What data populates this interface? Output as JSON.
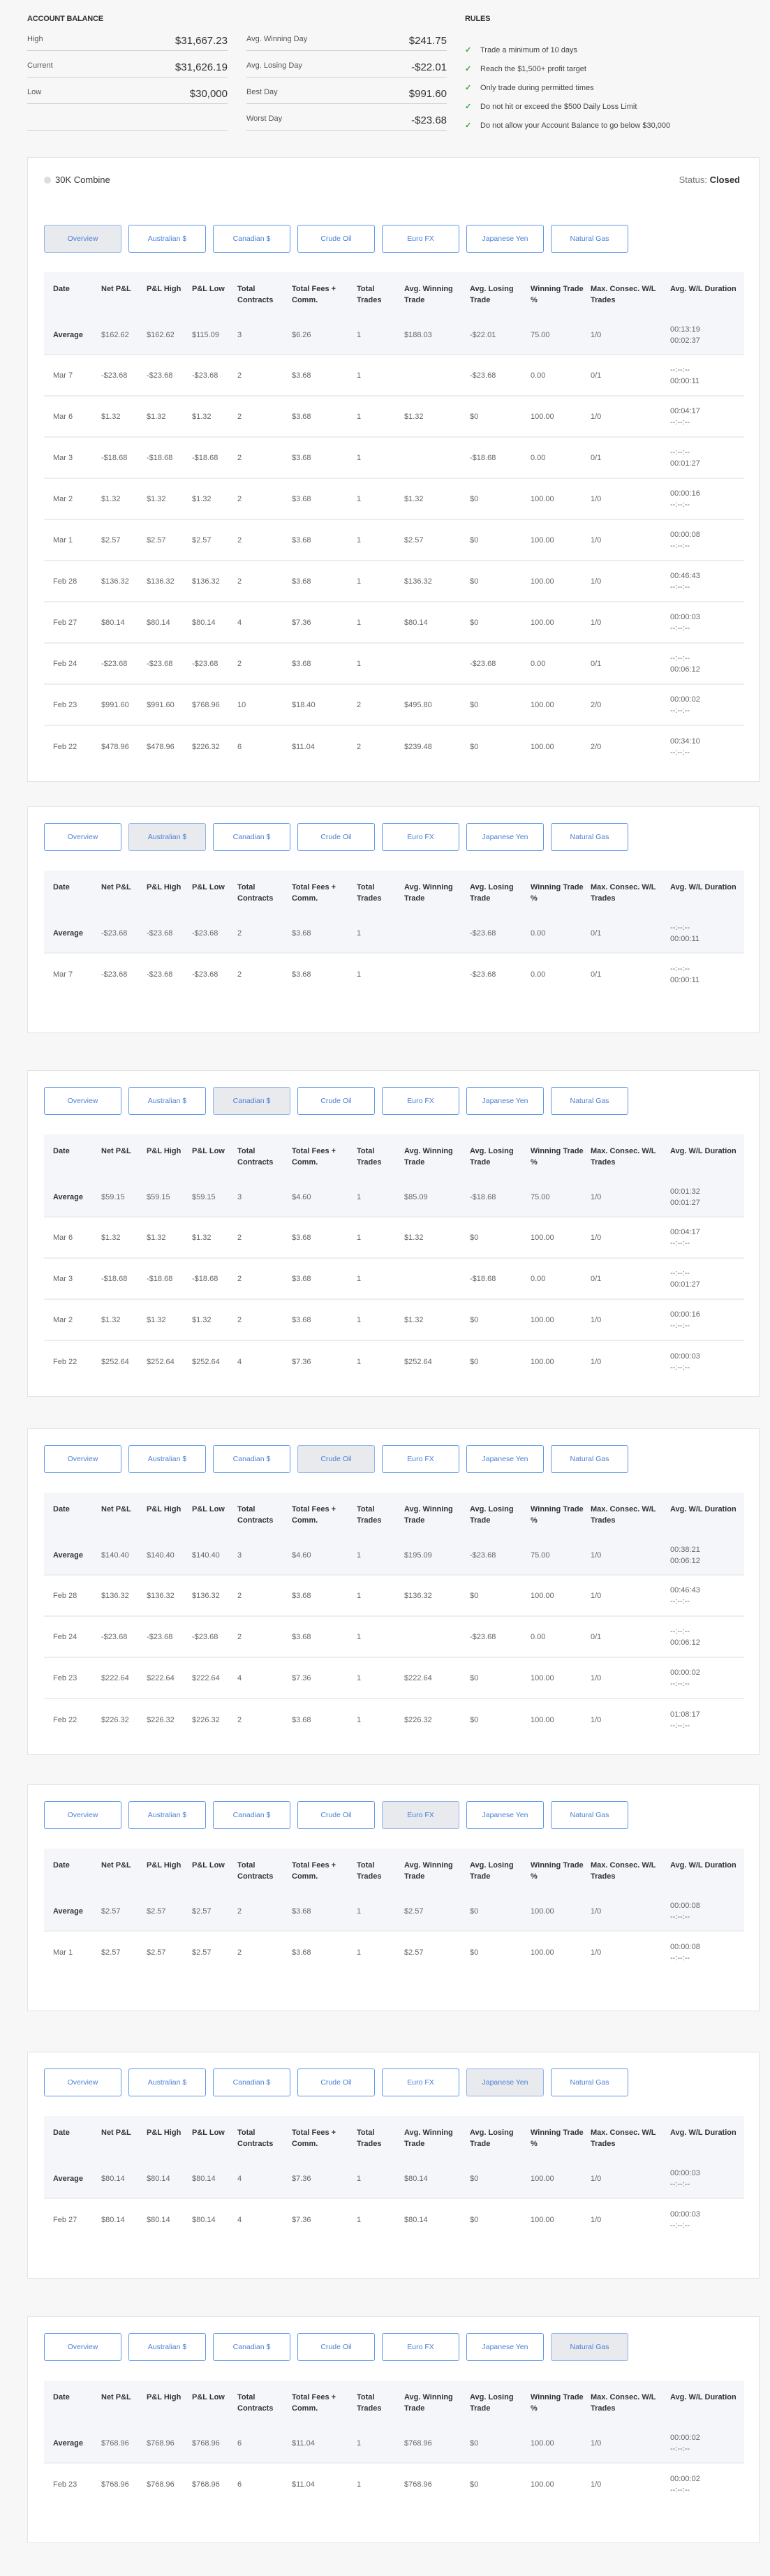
{
  "account_balance": {
    "title": "ACCOUNT BALANCE",
    "left": [
      {
        "label": "High",
        "value": "$31,667.23"
      },
      {
        "label": "Current",
        "value": "$31,626.19"
      },
      {
        "label": "Low",
        "value": "$30,000"
      },
      {
        "label": "",
        "value": ""
      }
    ],
    "right": [
      {
        "label": "Avg. Winning Day",
        "value": "$241.75"
      },
      {
        "label": "Avg. Losing Day",
        "value": "-$22.01"
      },
      {
        "label": "Best Day",
        "value": "$991.60"
      },
      {
        "label": "Worst Day",
        "value": "-$23.68"
      }
    ]
  },
  "rules": {
    "title": "RULES",
    "check_icon": "✓",
    "check_color": "#2ea84a",
    "items": [
      "Trade a minimum of 10 days",
      "Reach the $1,500+ profit target",
      "Only trade during permitted times",
      "Do not hit or exceed the $500 Daily Loss Limit",
      "Do not allow your Account Balance to go below $30,000"
    ]
  },
  "combine": {
    "name": "30K Combine",
    "status_label": "Status:",
    "status_value": "Closed"
  },
  "tabs": [
    "Overview",
    "Australian $",
    "Canadian $",
    "Crude Oil",
    "Euro FX",
    "Japanese Yen",
    "Natural Gas"
  ],
  "columns": [
    "Date",
    "Net P&L",
    "P&L High",
    "P&L Low",
    "Total Contracts",
    "Total Fees + Comm.",
    "Total Trades",
    "Avg. Winning Trade",
    "Avg. Losing Trade",
    "Winning Trade %",
    "Max. Consec. W/L Trades",
    "Avg. W/L Duration"
  ],
  "tables": [
    {
      "active_tab": "Overview",
      "rows": [
        {
          "date": "Average",
          "cells": [
            "$162.62",
            "$162.62",
            "$115.09",
            "3",
            "$6.26",
            "1",
            "$188.03",
            "-$22.01",
            "75.00",
            "1/0"
          ],
          "duration": [
            "00:13:19",
            "00:02:37"
          ]
        },
        {
          "date": "Mar 7",
          "cells": [
            "-$23.68",
            "-$23.68",
            "-$23.68",
            "2",
            "$3.68",
            "1",
            "",
            "-$23.68",
            "0.00",
            "0/1"
          ],
          "duration": [
            "--:--:--",
            "00:00:11"
          ]
        },
        {
          "date": "Mar 6",
          "cells": [
            "$1.32",
            "$1.32",
            "$1.32",
            "2",
            "$3.68",
            "1",
            "$1.32",
            "$0",
            "100.00",
            "1/0"
          ],
          "duration": [
            "00:04:17",
            "--:--:--"
          ]
        },
        {
          "date": "Mar 3",
          "cells": [
            "-$18.68",
            "-$18.68",
            "-$18.68",
            "2",
            "$3.68",
            "1",
            "",
            "-$18.68",
            "0.00",
            "0/1"
          ],
          "duration": [
            "--:--:--",
            "00:01:27"
          ]
        },
        {
          "date": "Mar 2",
          "cells": [
            "$1.32",
            "$1.32",
            "$1.32",
            "2",
            "$3.68",
            "1",
            "$1.32",
            "$0",
            "100.00",
            "1/0"
          ],
          "duration": [
            "00:00:16",
            "--:--:--"
          ]
        },
        {
          "date": "Mar 1",
          "cells": [
            "$2.57",
            "$2.57",
            "$2.57",
            "2",
            "$3.68",
            "1",
            "$2.57",
            "$0",
            "100.00",
            "1/0"
          ],
          "duration": [
            "00:00:08",
            "--:--:--"
          ]
        },
        {
          "date": "Feb 28",
          "cells": [
            "$136.32",
            "$136.32",
            "$136.32",
            "2",
            "$3.68",
            "1",
            "$136.32",
            "$0",
            "100.00",
            "1/0"
          ],
          "duration": [
            "00:46:43",
            "--:--:--"
          ]
        },
        {
          "date": "Feb 27",
          "cells": [
            "$80.14",
            "$80.14",
            "$80.14",
            "4",
            "$7.36",
            "1",
            "$80.14",
            "$0",
            "100.00",
            "1/0"
          ],
          "duration": [
            "00:00:03",
            "--:--:--"
          ]
        },
        {
          "date": "Feb 24",
          "cells": [
            "-$23.68",
            "-$23.68",
            "-$23.68",
            "2",
            "$3.68",
            "1",
            "",
            "-$23.68",
            "0.00",
            "0/1"
          ],
          "duration": [
            "--:--:--",
            "00:06:12"
          ]
        },
        {
          "date": "Feb 23",
          "cells": [
            "$991.60",
            "$991.60",
            "$768.96",
            "10",
            "$18.40",
            "2",
            "$495.80",
            "$0",
            "100.00",
            "2/0"
          ],
          "duration": [
            "00:00:02",
            "--:--:--"
          ]
        },
        {
          "date": "Feb 22",
          "cells": [
            "$478.96",
            "$478.96",
            "$226.32",
            "6",
            "$11.04",
            "2",
            "$239.48",
            "$0",
            "100.00",
            "2/0"
          ],
          "duration": [
            "00:34:10",
            "--:--:--"
          ]
        }
      ]
    },
    {
      "active_tab": "Australian $",
      "rows": [
        {
          "date": "Average",
          "cells": [
            "-$23.68",
            "-$23.68",
            "-$23.68",
            "2",
            "$3.68",
            "1",
            "",
            "-$23.68",
            "0.00",
            "0/1"
          ],
          "duration": [
            "--:--:--",
            "00:00:11"
          ]
        },
        {
          "date": "Mar 7",
          "cells": [
            "-$23.68",
            "-$23.68",
            "-$23.68",
            "2",
            "$3.68",
            "1",
            "",
            "-$23.68",
            "0.00",
            "0/1"
          ],
          "duration": [
            "--:--:--",
            "00:00:11"
          ]
        }
      ]
    },
    {
      "active_tab": "Canadian $",
      "rows": [
        {
          "date": "Average",
          "cells": [
            "$59.15",
            "$59.15",
            "$59.15",
            "3",
            "$4.60",
            "1",
            "$85.09",
            "-$18.68",
            "75.00",
            "1/0"
          ],
          "duration": [
            "00:01:32",
            "00:01:27"
          ]
        },
        {
          "date": "Mar 6",
          "cells": [
            "$1.32",
            "$1.32",
            "$1.32",
            "2",
            "$3.68",
            "1",
            "$1.32",
            "$0",
            "100.00",
            "1/0"
          ],
          "duration": [
            "00:04:17",
            "--:--:--"
          ]
        },
        {
          "date": "Mar 3",
          "cells": [
            "-$18.68",
            "-$18.68",
            "-$18.68",
            "2",
            "$3.68",
            "1",
            "",
            "-$18.68",
            "0.00",
            "0/1"
          ],
          "duration": [
            "--:--:--",
            "00:01:27"
          ]
        },
        {
          "date": "Mar 2",
          "cells": [
            "$1.32",
            "$1.32",
            "$1.32",
            "2",
            "$3.68",
            "1",
            "$1.32",
            "$0",
            "100.00",
            "1/0"
          ],
          "duration": [
            "00:00:16",
            "--:--:--"
          ]
        },
        {
          "date": "Feb 22",
          "cells": [
            "$252.64",
            "$252.64",
            "$252.64",
            "4",
            "$7.36",
            "1",
            "$252.64",
            "$0",
            "100.00",
            "1/0"
          ],
          "duration": [
            "00:00:03",
            "--:--:--"
          ]
        }
      ]
    },
    {
      "active_tab": "Crude Oil",
      "rows": [
        {
          "date": "Average",
          "cells": [
            "$140.40",
            "$140.40",
            "$140.40",
            "3",
            "$4.60",
            "1",
            "$195.09",
            "-$23.68",
            "75.00",
            "1/0"
          ],
          "duration": [
            "00:38:21",
            "00:06:12"
          ]
        },
        {
          "date": "Feb 28",
          "cells": [
            "$136.32",
            "$136.32",
            "$136.32",
            "2",
            "$3.68",
            "1",
            "$136.32",
            "$0",
            "100.00",
            "1/0"
          ],
          "duration": [
            "00:46:43",
            "--:--:--"
          ]
        },
        {
          "date": "Feb 24",
          "cells": [
            "-$23.68",
            "-$23.68",
            "-$23.68",
            "2",
            "$3.68",
            "1",
            "",
            "-$23.68",
            "0.00",
            "0/1"
          ],
          "duration": [
            "--:--:--",
            "00:06:12"
          ]
        },
        {
          "date": "Feb 23",
          "cells": [
            "$222.64",
            "$222.64",
            "$222.64",
            "4",
            "$7.36",
            "1",
            "$222.64",
            "$0",
            "100.00",
            "1/0"
          ],
          "duration": [
            "00:00:02",
            "--:--:--"
          ]
        },
        {
          "date": "Feb 22",
          "cells": [
            "$226.32",
            "$226.32",
            "$226.32",
            "2",
            "$3.68",
            "1",
            "$226.32",
            "$0",
            "100.00",
            "1/0"
          ],
          "duration": [
            "01:08:17",
            "--:--:--"
          ]
        }
      ]
    },
    {
      "active_tab": "Euro FX",
      "rows": [
        {
          "date": "Average",
          "cells": [
            "$2.57",
            "$2.57",
            "$2.57",
            "2",
            "$3.68",
            "1",
            "$2.57",
            "$0",
            "100.00",
            "1/0"
          ],
          "duration": [
            "00:00:08",
            "--:--:--"
          ]
        },
        {
          "date": "Mar 1",
          "cells": [
            "$2.57",
            "$2.57",
            "$2.57",
            "2",
            "$3.68",
            "1",
            "$2.57",
            "$0",
            "100.00",
            "1/0"
          ],
          "duration": [
            "00:00:08",
            "--:--:--"
          ]
        }
      ]
    },
    {
      "active_tab": "Japanese Yen",
      "rows": [
        {
          "date": "Average",
          "cells": [
            "$80.14",
            "$80.14",
            "$80.14",
            "4",
            "$7.36",
            "1",
            "$80.14",
            "$0",
            "100.00",
            "1/0"
          ],
          "duration": [
            "00:00:03",
            "--:--:--"
          ]
        },
        {
          "date": "Feb 27",
          "cells": [
            "$80.14",
            "$80.14",
            "$80.14",
            "4",
            "$7.36",
            "1",
            "$80.14",
            "$0",
            "100.00",
            "1/0"
          ],
          "duration": [
            "00:00:03",
            "--:--:--"
          ]
        }
      ]
    },
    {
      "active_tab": "Natural Gas",
      "rows": [
        {
          "date": "Average",
          "cells": [
            "$768.96",
            "$768.96",
            "$768.96",
            "6",
            "$11.04",
            "1",
            "$768.96",
            "$0",
            "100.00",
            "1/0"
          ],
          "duration": [
            "00:00:02",
            "--:--:--"
          ]
        },
        {
          "date": "Feb 23",
          "cells": [
            "$768.96",
            "$768.96",
            "$768.96",
            "6",
            "$11.04",
            "1",
            "$768.96",
            "$0",
            "100.00",
            "1/0"
          ],
          "duration": [
            "00:00:02",
            "--:--:--"
          ]
        }
      ]
    }
  ]
}
